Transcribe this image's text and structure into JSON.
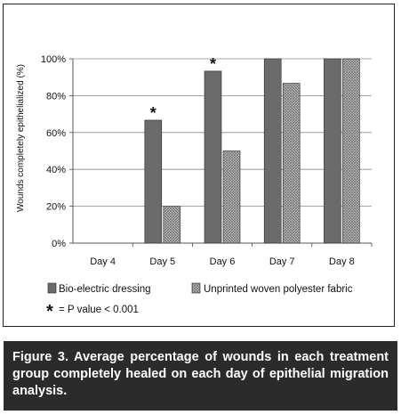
{
  "chart_data": {
    "type": "bar",
    "categories": [
      "Day 4",
      "Day 5",
      "Day 6",
      "Day 7",
      "Day 8"
    ],
    "series": [
      {
        "name": "Bio-electric dressing",
        "values": [
          0,
          66.7,
          93.3,
          100,
          100
        ],
        "color": "#6b6b6b",
        "pattern": "solid"
      },
      {
        "name": "Unprinted woven polyester fabric",
        "values": [
          0,
          20,
          50,
          86.7,
          100
        ],
        "color": "#9a9a9a",
        "pattern": "crosshatch"
      }
    ],
    "significant_categories": [
      "Day 5",
      "Day 6"
    ],
    "significance_marker": "*",
    "ylabel": "Wounds completely epithelialized (%)",
    "ylim": [
      0,
      100
    ],
    "yticks": [
      "0%",
      "20%",
      "40%",
      "60%",
      "80%",
      "100%"
    ],
    "ytick_values": [
      0,
      20,
      40,
      60,
      80,
      100
    ],
    "grid": true,
    "legend_placement": "bottom",
    "legend_note": "= P value < 0.001"
  },
  "caption": "Figure 3. Average percentage of wounds in each treatment group completely healed on each day of epithelial migration analysis.",
  "colors": {
    "caption_bg": "#2b2b2b",
    "caption_text": "#ffffff"
  }
}
